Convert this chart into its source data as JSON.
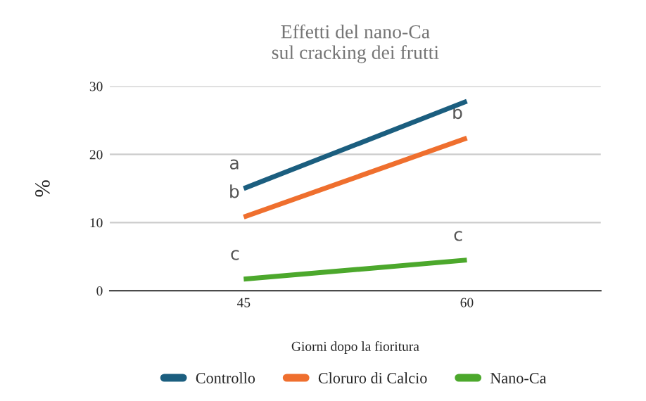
{
  "chart_data": {
    "type": "line",
    "title": "Effetti del nano-Ca\nsul cracking dei frutti",
    "xlabel": "Giorni dopo la fioritura",
    "ylabel": "%",
    "categories": [
      "45",
      "60"
    ],
    "series": [
      {
        "name": "Controllo",
        "color": "#1b5e7f",
        "values": [
          15,
          27.8
        ]
      },
      {
        "name": "Cloruro di Calcio",
        "color": "#ef6f2e",
        "values": [
          10.8,
          22.4
        ]
      },
      {
        "name": "Nano-Ca",
        "color": "#4ca82c",
        "values": [
          1.7,
          4.5
        ]
      }
    ],
    "annotations": [
      {
        "text": "a",
        "x": "45",
        "y": 15
      },
      {
        "text": "b",
        "x": "45",
        "y": 10.8
      },
      {
        "text": "c",
        "x": "45",
        "y": 1.7
      },
      {
        "text": "b",
        "x": "60",
        "y": 22.4
      },
      {
        "text": "c",
        "x": "60",
        "y": 4.5
      }
    ],
    "ylim": [
      0,
      30
    ],
    "yticks": [
      0,
      10,
      20,
      30
    ],
    "grid": "y",
    "legend": "bottom",
    "marker": "none",
    "line_style": "solid"
  }
}
